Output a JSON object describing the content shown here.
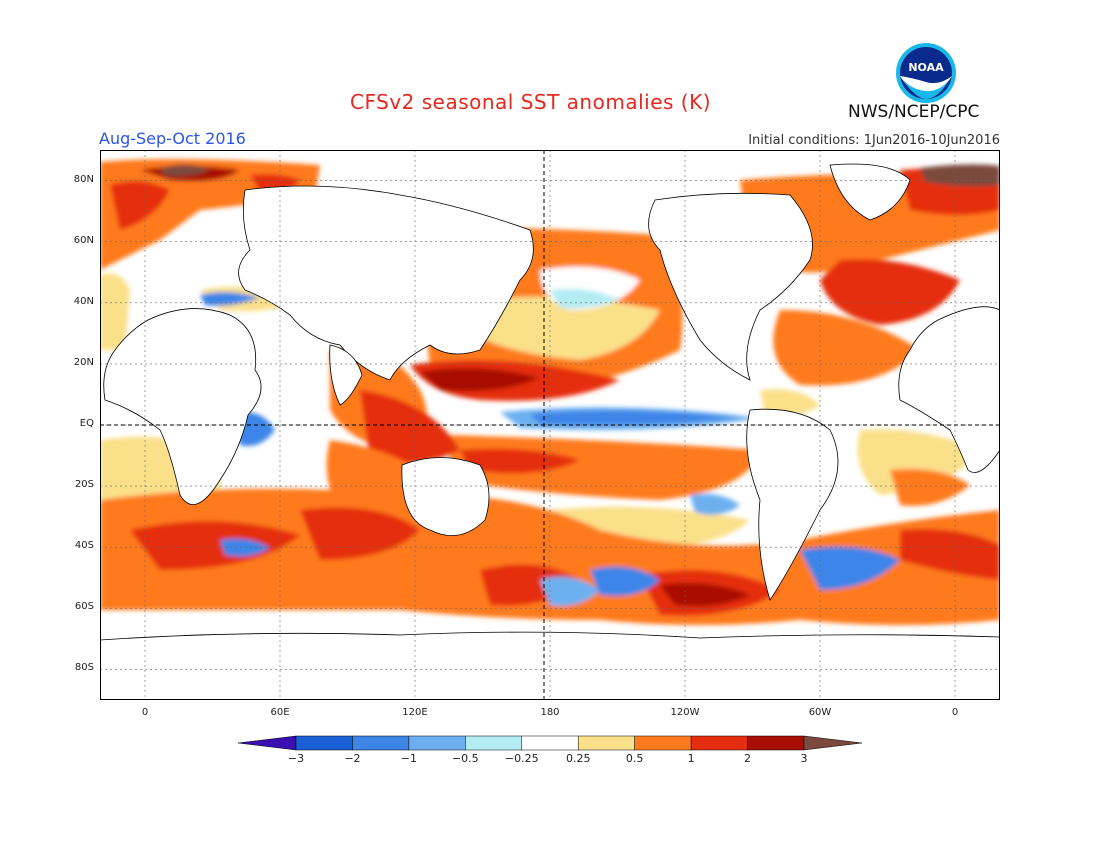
{
  "header": {
    "title": "CFSv2 seasonal SST anomalies (K)",
    "season": "Aug-Sep-Oct 2016",
    "initial_conditions": "Initial conditions: 1Jun2016-10Jun2016",
    "agency": "NWS/NCEP/CPC",
    "logo_text": "NOAA"
  },
  "map": {
    "projection": "cylindrical equidistant",
    "lon_range": [
      -20,
      380
    ],
    "lat_range": [
      -90,
      90
    ],
    "lat_ticks": [
      "80N",
      "60N",
      "40N",
      "20N",
      "EQ",
      "20S",
      "40S",
      "60S",
      "80S"
    ],
    "lon_ticks": [
      "0",
      "60E",
      "120E",
      "180",
      "120W",
      "60W",
      "0"
    ]
  },
  "legend": {
    "tick_labels": [
      "-3",
      "-2",
      "-1",
      "-0.5",
      "-0.25",
      "0.25",
      "0.5",
      "1",
      "2",
      "3"
    ],
    "colors": [
      "#3a0fb0",
      "#1a5fd6",
      "#3e85e8",
      "#6db0f0",
      "#b4ecf4",
      "#ffffff",
      "#fbe08a",
      "#ff7a1e",
      "#e52e10",
      "#a80e04",
      "#7c4a3c"
    ]
  }
}
